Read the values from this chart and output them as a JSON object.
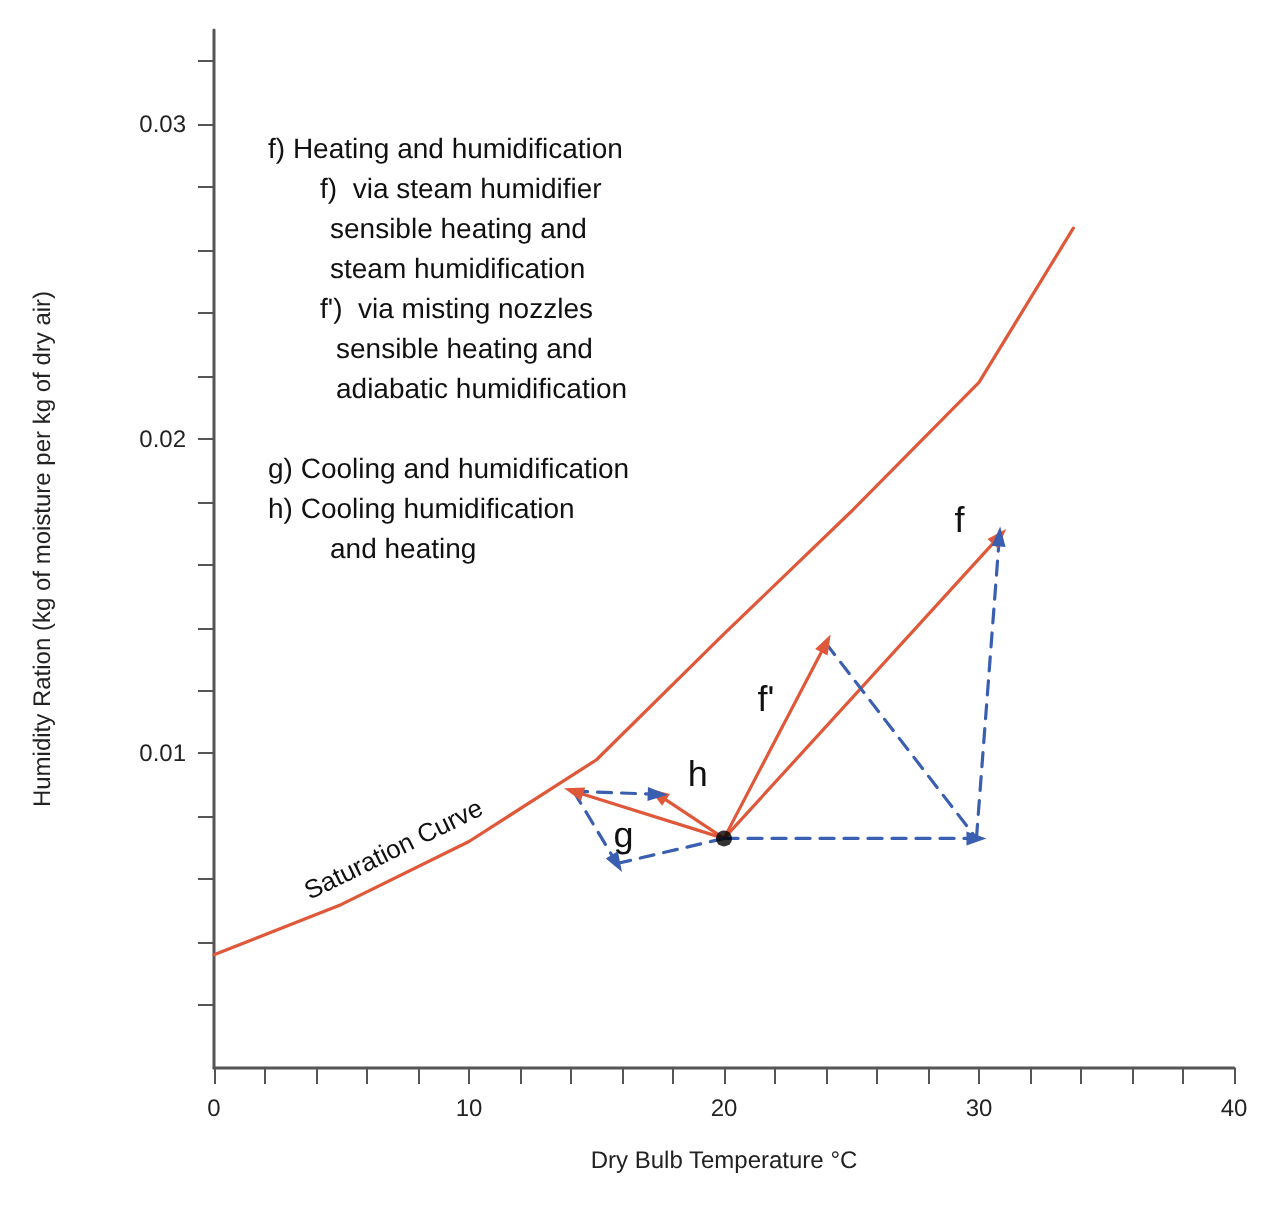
{
  "chart_data": {
    "type": "line",
    "xlabel": "Dry Bulb Temperature °C",
    "ylabel": "Humidity Ration (kg of moisture per kg of dry air)",
    "xlim": [
      0,
      40
    ],
    "xticks": [
      0,
      {
        "value": 2,
        "label": null
      },
      {
        "value": 4,
        "label": null
      },
      {
        "value": 6,
        "label": null
      },
      {
        "value": 8,
        "label": null
      },
      10,
      {
        "value": 12,
        "label": null
      },
      {
        "value": 14,
        "label": null
      },
      {
        "value": 16,
        "label": null
      },
      {
        "value": 18,
        "label": null
      },
      20,
      {
        "value": 22,
        "label": null
      },
      {
        "value": 24,
        "label": null
      },
      {
        "value": 26,
        "label": null
      },
      {
        "value": 28,
        "label": null
      },
      30,
      {
        "value": 32,
        "label": null
      },
      {
        "value": 34,
        "label": null
      },
      {
        "value": 36,
        "label": null
      },
      {
        "value": 38,
        "label": null
      },
      40
    ],
    "ylim": [
      0,
      0.033
    ],
    "yticks": [
      {
        "value": 0.002,
        "label": null
      },
      {
        "value": 0.004,
        "label": null
      },
      {
        "value": 0.006,
        "label": null
      },
      {
        "value": 0.008,
        "label": null
      },
      0.01,
      {
        "value": 0.012,
        "label": null
      },
      {
        "value": 0.014,
        "label": null
      },
      {
        "value": 0.016,
        "label": null
      },
      {
        "value": 0.018,
        "label": null
      },
      0.02,
      {
        "value": 0.022,
        "label": null
      },
      {
        "value": 0.024,
        "label": null
      },
      {
        "value": 0.026,
        "label": null
      },
      {
        "value": 0.028,
        "label": null
      },
      0.03,
      {
        "value": 0.032,
        "label": null
      }
    ],
    "grid": false,
    "legend": false,
    "series": [
      {
        "name": "Saturation Curve",
        "color": "#e0583a",
        "x": [
          0,
          5,
          10,
          15,
          20,
          25,
          30,
          33.7
        ],
        "values": [
          0.0036,
          0.0052,
          0.0072,
          0.0098,
          0.0138,
          0.0177,
          0.0218,
          0.0267
        ],
        "marker": "none",
        "line_style": "solid"
      },
      {
        "name": "f",
        "color": "#e0583a",
        "x": [
          20,
          30.8
        ],
        "values": [
          0.0073,
          0.0169
        ],
        "marker": "triangle",
        "line_style": "solid"
      },
      {
        "name": "f'",
        "color": "#e0583a",
        "x": [
          20,
          24
        ],
        "values": [
          0.0073,
          0.0135
        ],
        "marker": "triangle",
        "line_style": "solid"
      },
      {
        "name": "h",
        "color": "#e0583a",
        "x": [
          20,
          17.4
        ],
        "values": [
          0.0073,
          0.0087
        ],
        "marker": "triangle",
        "line_style": "solid"
      },
      {
        "name": "g",
        "color": "#e0583a",
        "x": [
          20,
          14.1
        ],
        "values": [
          0.0073,
          0.0088
        ],
        "marker": "triangle",
        "line_style": "solid"
      },
      {
        "color": "#3a5fb0",
        "x": [
          20,
          29.9
        ],
        "values": [
          0.0073,
          0.0073
        ],
        "marker": "triangle",
        "line_style": "dashed"
      },
      {
        "color": "#3a5fb0",
        "x": [
          29.9,
          30.8
        ],
        "values": [
          0.0073,
          0.0169
        ],
        "marker": "triangle",
        "line_style": "dashed"
      },
      {
        "color": "#3a5fb0",
        "x": [
          24,
          29.9
        ],
        "values": [
          0.0135,
          0.0073
        ],
        "marker": "none",
        "line_style": "dashed"
      },
      {
        "color": "#3a5fb0",
        "x": [
          14.1,
          17.4
        ],
        "values": [
          0.0088,
          0.0087
        ],
        "marker": "triangle",
        "line_style": "dashed"
      },
      {
        "color": "#3a5fb0",
        "x": [
          14.1,
          15.8
        ],
        "values": [
          0.0088,
          0.0065
        ],
        "marker": "triangle",
        "line_style": "dashed"
      },
      {
        "color": "#3a5fb0",
        "x": [
          15.8,
          20
        ],
        "values": [
          0.0065,
          0.0073
        ],
        "marker": "none",
        "line_style": "dashed"
      },
      {
        "type": "scatter",
        "color": "#000000",
        "x": [
          20
        ],
        "values": [
          0.0073
        ],
        "marker": "circle"
      }
    ],
    "annotations": [
      "f) Heating and humidification",
      "f)  via steam humidifier",
      "sensible heating and",
      "steam humidification",
      "f')  via misting nozzles",
      "sensible heating and",
      "adiabatic humidification",
      "g) Cooling and humidification",
      "h) Cooling humidification",
      "and heating"
    ]
  }
}
